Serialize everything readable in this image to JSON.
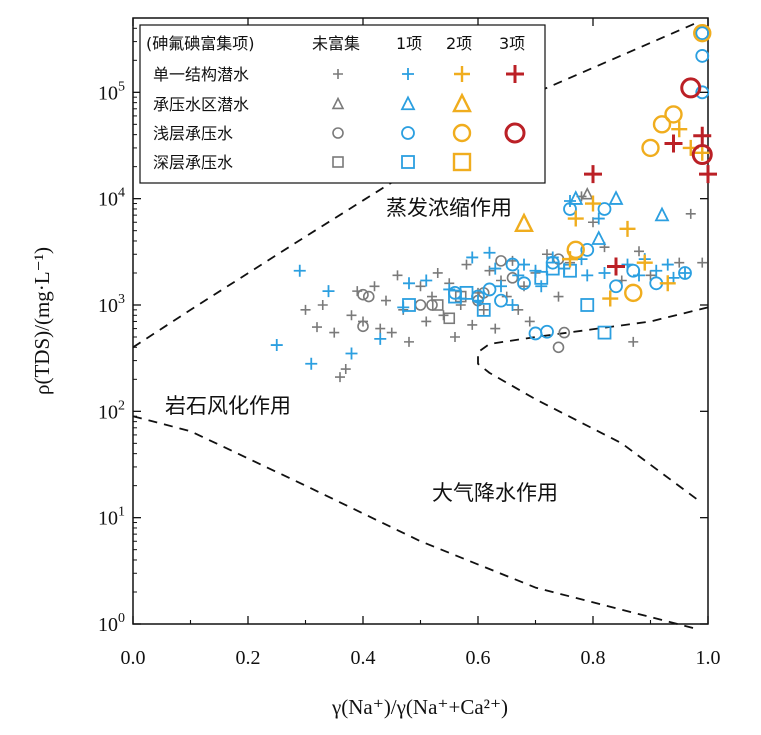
{
  "chart_data": {
    "type": "scatter",
    "title": "",
    "xlabel": "γ(Na⁺)/γ(Na⁺+Ca²⁺)",
    "ylabel": "ρ(TDS)/(mg·L⁻¹)",
    "xlim": [
      0.0,
      1.0
    ],
    "ylim": [
      1,
      500000
    ],
    "y_scale": "log",
    "x_ticks": [
      "0.0",
      "0.2",
      "0.4",
      "0.6",
      "0.8",
      "1.0"
    ],
    "y_tick_exponents": [
      "0",
      "1",
      "2",
      "3",
      "4",
      "5"
    ],
    "y_tick_base": "10",
    "grid": false,
    "legend_position": "top-left",
    "legend": {
      "header": "(砷氟碘富集项)",
      "columns": [
        "未富集",
        "1项",
        "2项",
        "3项"
      ],
      "rows": [
        "单一结构潜水",
        "承压水区潜水",
        "浅层承压水",
        "深层承压水"
      ]
    },
    "regions": [
      "蒸发浓缩作用",
      "岩石风化作用",
      "大气降水作用"
    ],
    "colors": {
      "未富集": "#7a7a7a",
      "1项": "#2b9fe0",
      "2项": "#f0ad1e",
      "3项": "#bb2026",
      "frame": "#111111"
    },
    "series": [
      {
        "name": "单一结构潜水 · 未富集",
        "marker": "plus",
        "level": 0,
        "points": [
          [
            0.3,
            900
          ],
          [
            0.32,
            620
          ],
          [
            0.33,
            1000
          ],
          [
            0.35,
            550
          ],
          [
            0.36,
            210
          ],
          [
            0.37,
            250
          ],
          [
            0.38,
            800
          ],
          [
            0.39,
            1350
          ],
          [
            0.4,
            700
          ],
          [
            0.42,
            1500
          ],
          [
            0.43,
            600
          ],
          [
            0.44,
            1100
          ],
          [
            0.45,
            550
          ],
          [
            0.46,
            1900
          ],
          [
            0.47,
            900
          ],
          [
            0.48,
            450
          ],
          [
            0.5,
            1500
          ],
          [
            0.51,
            700
          ],
          [
            0.52,
            1200
          ],
          [
            0.53,
            2000
          ],
          [
            0.54,
            800
          ],
          [
            0.55,
            1600
          ],
          [
            0.56,
            500
          ],
          [
            0.57,
            1000
          ],
          [
            0.58,
            2400
          ],
          [
            0.59,
            650
          ],
          [
            0.6,
            1300
          ],
          [
            0.61,
            900
          ],
          [
            0.62,
            2100
          ],
          [
            0.63,
            600
          ],
          [
            0.64,
            1700
          ],
          [
            0.65,
            1200
          ],
          [
            0.66,
            2600
          ],
          [
            0.67,
            900
          ],
          [
            0.68,
            1500
          ],
          [
            0.69,
            700
          ],
          [
            0.7,
            2000
          ],
          [
            0.72,
            3000
          ],
          [
            0.74,
            1200
          ],
          [
            0.76,
            2500
          ],
          [
            0.78,
            10500
          ],
          [
            0.8,
            6000
          ],
          [
            0.82,
            3500
          ],
          [
            0.85,
            1700
          ],
          [
            0.87,
            450
          ],
          [
            0.88,
            3200
          ],
          [
            0.9,
            1900
          ],
          [
            0.95,
            2500
          ],
          [
            0.97,
            7200
          ],
          [
            0.99,
            2500
          ]
        ]
      },
      {
        "name": "承压水区潜水 · 未富集",
        "marker": "triangle",
        "level": 0,
        "points": [
          [
            0.79,
            11000
          ]
        ]
      },
      {
        "name": "浅层承压水 · 未富集",
        "marker": "circle",
        "level": 0,
        "points": [
          [
            0.4,
            1250
          ],
          [
            0.41,
            1200
          ],
          [
            0.4,
            630
          ],
          [
            0.5,
            1000
          ],
          [
            0.52,
            1000
          ],
          [
            0.6,
            1100
          ],
          [
            0.61,
            1300
          ],
          [
            0.64,
            2600
          ],
          [
            0.66,
            1800
          ],
          [
            0.74,
            2700
          ],
          [
            0.74,
            400
          ],
          [
            0.75,
            550
          ]
        ]
      },
      {
        "name": "深层承压水 · 未富集",
        "marker": "square",
        "level": 0,
        "points": [
          [
            0.53,
            1000
          ],
          [
            0.55,
            750
          ],
          [
            0.57,
            1200
          ]
        ]
      },
      {
        "name": "单一结构潜水 · 1项",
        "marker": "plus",
        "level": 1,
        "points": [
          [
            0.25,
            420
          ],
          [
            0.29,
            2100
          ],
          [
            0.31,
            280
          ],
          [
            0.34,
            1350
          ],
          [
            0.38,
            350
          ],
          [
            0.43,
            480
          ],
          [
            0.47,
            950
          ],
          [
            0.48,
            1600
          ],
          [
            0.51,
            1700
          ],
          [
            0.55,
            1400
          ],
          [
            0.57,
            1150
          ],
          [
            0.59,
            2800
          ],
          [
            0.6,
            1100
          ],
          [
            0.62,
            3100
          ],
          [
            0.63,
            2200
          ],
          [
            0.64,
            1500
          ],
          [
            0.66,
            1000
          ],
          [
            0.67,
            1900
          ],
          [
            0.68,
            2400
          ],
          [
            0.7,
            2100
          ],
          [
            0.71,
            1500
          ],
          [
            0.73,
            2800
          ],
          [
            0.75,
            2200
          ],
          [
            0.76,
            9500
          ],
          [
            0.78,
            2700
          ],
          [
            0.79,
            1900
          ],
          [
            0.81,
            6500
          ],
          [
            0.82,
            2000
          ],
          [
            0.86,
            2400
          ],
          [
            0.88,
            1900
          ],
          [
            0.89,
            2700
          ],
          [
            0.91,
            2100
          ],
          [
            0.93,
            2400
          ],
          [
            0.94,
            1800
          ],
          [
            0.96,
            2000
          ]
        ]
      },
      {
        "name": "承压水区潜水 · 1项",
        "marker": "triangle",
        "level": 1,
        "points": [
          [
            0.77,
            10000
          ],
          [
            0.81,
            4200
          ],
          [
            0.84,
            10000
          ],
          [
            0.92,
            7000
          ]
        ]
      },
      {
        "name": "浅层承压水 · 1项",
        "marker": "circle",
        "level": 1,
        "points": [
          [
            0.56,
            1300
          ],
          [
            0.6,
            1200
          ],
          [
            0.62,
            1400
          ],
          [
            0.64,
            1100
          ],
          [
            0.66,
            2400
          ],
          [
            0.68,
            1600
          ],
          [
            0.7,
            540
          ],
          [
            0.72,
            560
          ],
          [
            0.73,
            2500
          ],
          [
            0.76,
            8000
          ],
          [
            0.79,
            3300
          ],
          [
            0.82,
            8000
          ],
          [
            0.84,
            1500
          ],
          [
            0.87,
            2100
          ],
          [
            0.91,
            1600
          ],
          [
            0.96,
            2000
          ],
          [
            0.99,
            100000
          ],
          [
            0.99,
            220000
          ],
          [
            0.99,
            360000
          ]
        ]
      },
      {
        "name": "深层承压水 · 1项",
        "marker": "square",
        "level": 1,
        "points": [
          [
            0.48,
            1000
          ],
          [
            0.56,
            1200
          ],
          [
            0.58,
            1300
          ],
          [
            0.61,
            900
          ],
          [
            0.71,
            1800
          ],
          [
            0.73,
            2200
          ],
          [
            0.76,
            2100
          ],
          [
            0.79,
            1000
          ],
          [
            0.82,
            550
          ]
        ]
      },
      {
        "name": "单一结构潜水 · 2项",
        "marker": "plus",
        "level": 2,
        "points": [
          [
            0.76,
            2700
          ],
          [
            0.77,
            6500
          ],
          [
            0.8,
            9000
          ],
          [
            0.83,
            1150
          ],
          [
            0.86,
            5200
          ],
          [
            0.89,
            2500
          ],
          [
            0.93,
            1600
          ],
          [
            0.95,
            45000
          ],
          [
            0.97,
            30000
          ],
          [
            0.99,
            27000
          ]
        ]
      },
      {
        "name": "承压水区潜水 · 2项",
        "marker": "triangle",
        "level": 2,
        "points": [
          [
            0.68,
            5800
          ]
        ]
      },
      {
        "name": "浅层承压水 · 2项",
        "marker": "circle",
        "level": 2,
        "points": [
          [
            0.77,
            3300
          ],
          [
            0.87,
            1300
          ],
          [
            0.9,
            30000
          ],
          [
            0.92,
            50000
          ],
          [
            0.94,
            62000
          ],
          [
            0.99,
            360000
          ]
        ]
      },
      {
        "name": "单一结构潜水 · 3项",
        "marker": "plus",
        "level": 3,
        "points": [
          [
            0.8,
            17000
          ],
          [
            0.84,
            2300
          ],
          [
            0.94,
            33000
          ],
          [
            0.99,
            39000
          ],
          [
            1.0,
            17000
          ]
        ]
      },
      {
        "name": "浅层承压水 · 3项",
        "marker": "circle",
        "level": 3,
        "points": [
          [
            0.97,
            110000
          ],
          [
            0.99,
            26000
          ]
        ]
      }
    ],
    "boundaries": [
      {
        "name": "upper",
        "points": [
          [
            0.0,
            400
          ],
          [
            0.1,
            900
          ],
          [
            0.3,
            4400
          ],
          [
            0.5,
            21000
          ],
          [
            0.7,
            99000
          ],
          [
            0.98,
            450000
          ]
        ]
      },
      {
        "name": "lower-left",
        "points": [
          [
            0.0,
            90
          ],
          [
            0.1,
            65
          ],
          [
            0.3,
            20
          ],
          [
            0.5,
            6
          ],
          [
            0.7,
            2.2
          ],
          [
            0.98,
            0.9
          ]
        ]
      },
      {
        "name": "right-nose",
        "points": [
          [
            1.0,
            950
          ],
          [
            0.9,
            700
          ],
          [
            0.7,
            500
          ],
          [
            0.62,
            430
          ],
          [
            0.6,
            360
          ],
          [
            0.6,
            280
          ],
          [
            0.62,
            230
          ],
          [
            0.7,
            130
          ],
          [
            0.85,
            50
          ],
          [
            0.98,
            15
          ]
        ]
      }
    ]
  }
}
